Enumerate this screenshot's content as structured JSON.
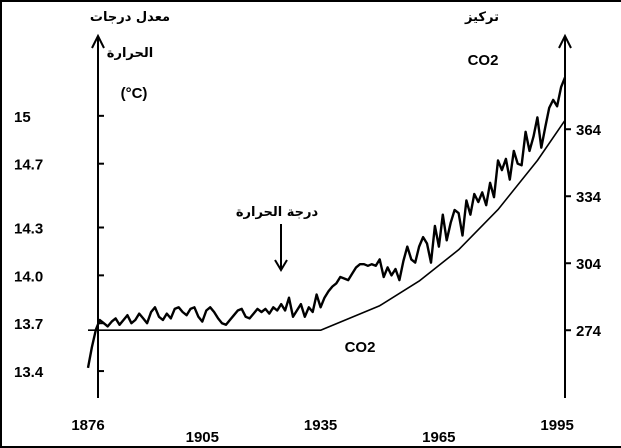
{
  "chart_data": {
    "type": "line",
    "left_axis": {
      "title_line1": "معدل درجات",
      "title_line2": "الحرارة",
      "unit": "(°C)",
      "ticks": [
        "13.4",
        "13.7",
        "14.0",
        "14.3",
        "14.7",
        "15"
      ],
      "tick_values": [
        13.4,
        13.7,
        14.0,
        14.3,
        14.7,
        15.0
      ],
      "ylim": [
        13.25,
        15.35
      ]
    },
    "right_axis": {
      "title": "تركيز",
      "subtitle": "CO2",
      "ticks": [
        "274",
        "304",
        "334",
        "364"
      ],
      "tick_values": [
        274,
        304,
        334,
        364
      ],
      "ylim": [
        245,
        395
      ]
    },
    "x_axis": {
      "ticks": [
        "1876",
        "1905",
        "1935",
        "1965",
        "1995"
      ],
      "tick_values": [
        1876,
        1905,
        1935,
        1965,
        1995
      ],
      "xlim": [
        1876,
        1997
      ]
    },
    "annotations": {
      "temperature": "درجة الحرارة",
      "co2": "CO2"
    },
    "series": [
      {
        "axis": "left",
        "x": [
          1876,
          1877,
          1878,
          1879,
          1880,
          1881,
          1882,
          1883,
          1884,
          1885,
          1886,
          1887,
          1888,
          1889,
          1890,
          1891,
          1892,
          1893,
          1894,
          1895,
          1896,
          1897,
          1898,
          1899,
          1900,
          1901,
          1902,
          1903,
          1904,
          1905,
          1906,
          1907,
          1908,
          1909,
          1910,
          1911,
          1912,
          1913,
          1914,
          1915,
          1916,
          1917,
          1918,
          1919,
          1920,
          1921,
          1922,
          1923,
          1924,
          1925,
          1926,
          1927,
          1928,
          1929,
          1930,
          1931,
          1932,
          1933,
          1934,
          1935,
          1936,
          1937,
          1938,
          1939,
          1940,
          1941,
          1942,
          1943,
          1944,
          1945,
          1946,
          1947,
          1948,
          1949,
          1950,
          1951,
          1952,
          1953,
          1954,
          1955,
          1956,
          1957,
          1958,
          1959,
          1960,
          1961,
          1962,
          1963,
          1964,
          1965,
          1966,
          1967,
          1968,
          1969,
          1970,
          1971,
          1972,
          1973,
          1974,
          1975,
          1976,
          1977,
          1978,
          1979,
          1980,
          1981,
          1982,
          1983,
          1984,
          1985,
          1986,
          1987,
          1988,
          1989,
          1990,
          1991,
          1992,
          1993,
          1994,
          1995,
          1996,
          1997
        ],
        "values": [
          13.42,
          13.55,
          13.66,
          13.72,
          13.7,
          13.68,
          13.71,
          13.73,
          13.69,
          13.72,
          13.75,
          13.7,
          13.72,
          13.76,
          13.73,
          13.7,
          13.77,
          13.8,
          13.74,
          13.72,
          13.76,
          13.73,
          13.79,
          13.8,
          13.77,
          13.75,
          13.79,
          13.8,
          13.74,
          13.71,
          13.78,
          13.8,
          13.77,
          13.73,
          13.7,
          13.69,
          13.72,
          13.75,
          13.78,
          13.79,
          13.74,
          13.73,
          13.76,
          13.79,
          13.77,
          13.79,
          13.76,
          13.8,
          13.78,
          13.82,
          13.78,
          13.86,
          13.74,
          13.78,
          13.82,
          13.74,
          13.8,
          13.77,
          13.88,
          13.8,
          13.86,
          13.9,
          13.93,
          13.95,
          13.99,
          13.98,
          13.97,
          14.01,
          14.05,
          14.07,
          14.07,
          14.06,
          14.07,
          14.06,
          14.1,
          13.99,
          14.05,
          14.0,
          14.04,
          13.97,
          14.09,
          14.18,
          14.1,
          14.08,
          14.18,
          14.24,
          14.2,
          14.08,
          14.31,
          14.18,
          14.38,
          14.22,
          14.33,
          14.41,
          14.39,
          14.25,
          14.47,
          14.38,
          14.51,
          14.46,
          14.52,
          14.44,
          14.58,
          14.49,
          14.72,
          14.66,
          14.73,
          14.6,
          14.78,
          14.7,
          14.69,
          14.9,
          14.78,
          14.87,
          14.99,
          14.8,
          14.93,
          15.05,
          15.1,
          15.06,
          15.18,
          15.24
        ]
      },
      {
        "axis": "right",
        "x": [
          1876,
          1935,
          1950,
          1960,
          1970,
          1980,
          1990,
          1997
        ],
        "values": [
          274,
          274,
          285,
          296,
          310,
          328,
          350,
          368
        ]
      }
    ]
  }
}
